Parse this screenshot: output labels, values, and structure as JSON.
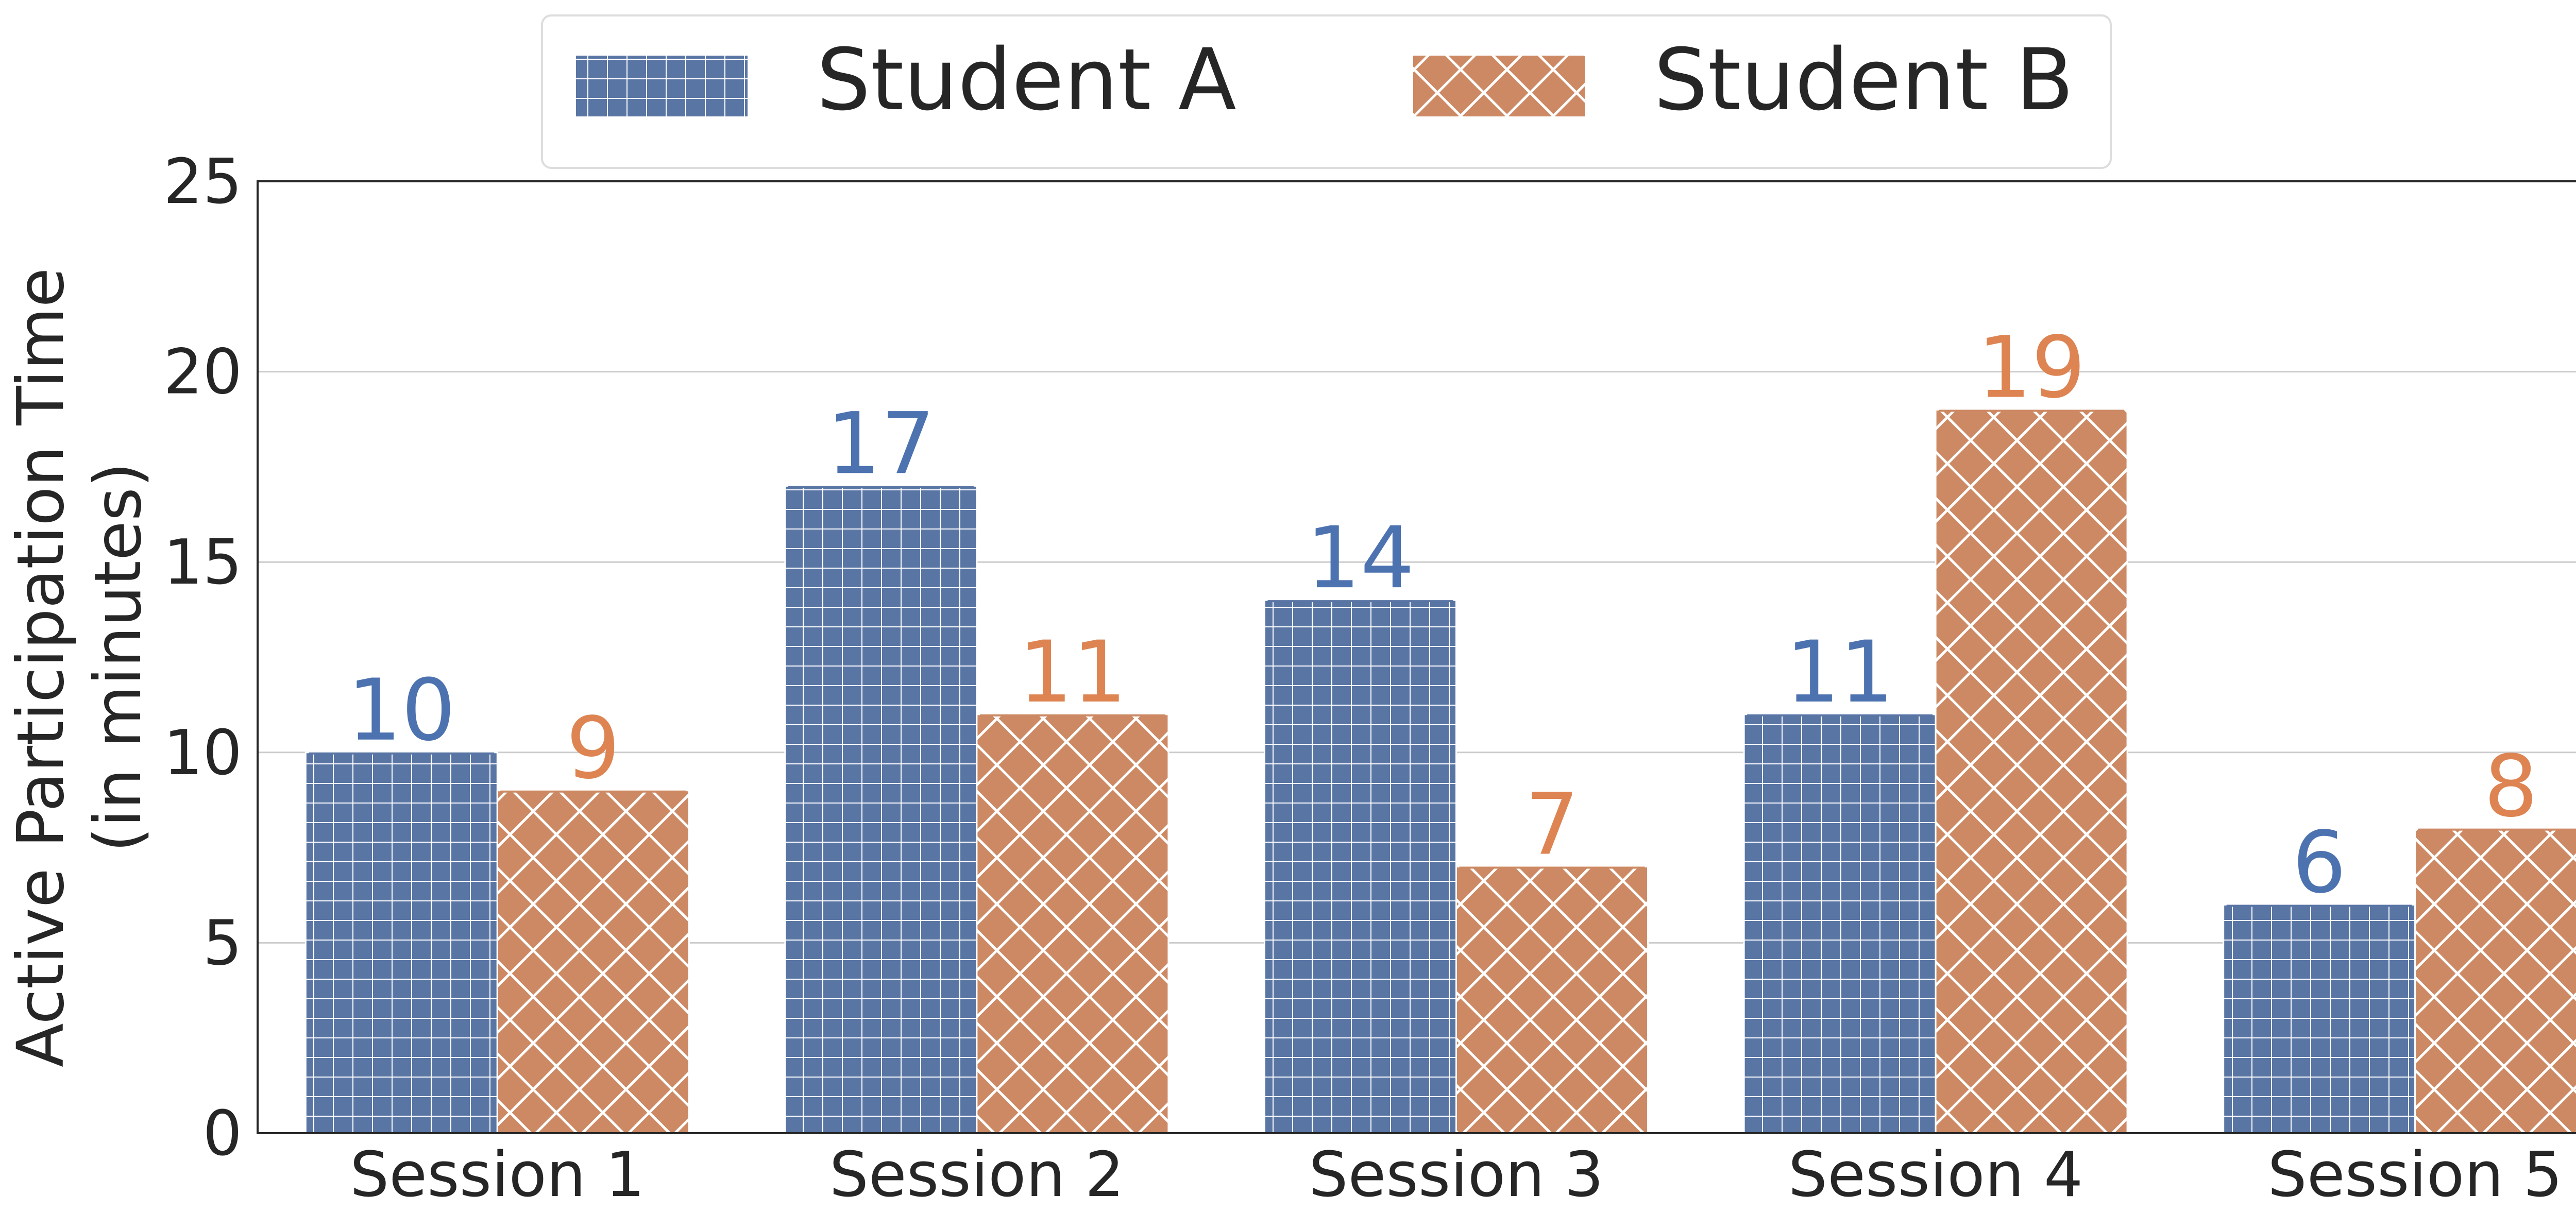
{
  "chart_data": {
    "type": "bar",
    "categories": [
      "Session 1",
      "Session 2",
      "Session 3",
      "Session 4",
      "Session 5"
    ],
    "series": [
      {
        "name": "Student A",
        "values": [
          10,
          17,
          14,
          11,
          6
        ],
        "color": "#5975a4",
        "hatch": "grid"
      },
      {
        "name": "Student B",
        "values": [
          9,
          11,
          7,
          19,
          8
        ],
        "color": "#cc8963",
        "hatch": "crosshatch"
      }
    ],
    "label_colors": [
      "#4c72b0",
      "#dd8452"
    ],
    "title": "",
    "xlabel": "",
    "ylabel_lines": [
      "Active Participation Time",
      "(in minutes)"
    ],
    "ylim": [
      0,
      25
    ],
    "yticks": [
      0,
      5,
      10,
      15,
      20,
      25
    ],
    "grid": true,
    "legend_position": "top-center"
  }
}
